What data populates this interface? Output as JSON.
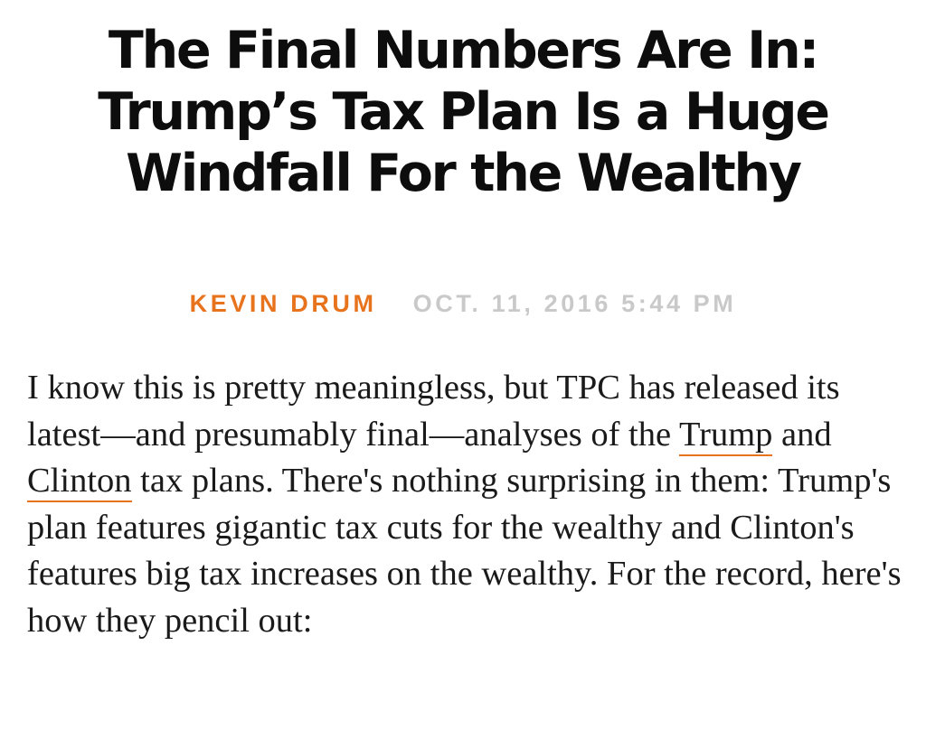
{
  "article": {
    "headline_line1": "The Final Numbers Are In:",
    "headline_line2": "Trump’s Tax Plan Is a Huge",
    "headline_line3": "Windfall For the Wealthy",
    "byline": {
      "author": "KEVIN DRUM",
      "date": "OCT. 11, 2016 5:44 PM"
    },
    "body": {
      "text_before_link1": "I know this is pretty meaningless, but TPC has released its latest—and presumably final—analyses of the ",
      "link1": "Trump",
      "text_between_links": " and ",
      "link2": "Clinton",
      "text_after_links": " tax plans. There's nothing surprising in them: Trump's plan features gigantic tax cuts for the wealthy and Clinton's features big tax increases on the wealthy. For the record, here's how they pencil out:"
    },
    "colors": {
      "accent": "#e8731d",
      "date_gray": "#c9c9c9",
      "text": "#1a1a1a"
    }
  }
}
